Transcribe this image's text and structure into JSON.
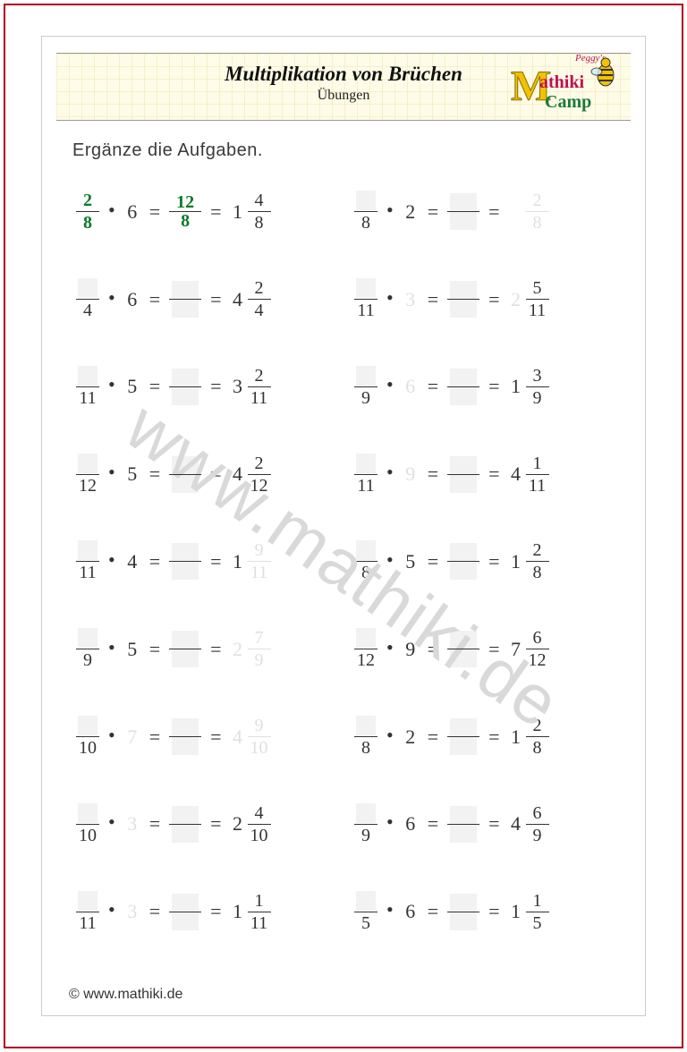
{
  "header": {
    "title": "Multiplikation von Brüchen",
    "subtitle": "Übungen",
    "logo_text_top": "Peggy's",
    "logo_text_m": "M",
    "logo_text_athiki": "athiki",
    "logo_text_camp": "Camp"
  },
  "instruction": "Ergänze die Aufgaben.",
  "watermark": "www.mathiki.de",
  "footer": "© www.mathiki.de",
  "colors": {
    "outer_border": "#b00020",
    "page_border": "#cccccc",
    "header_bg": "#fefce8",
    "header_grid": "#f4f0c8",
    "text": "#333333",
    "green": "#0a7a2a",
    "blank_bg": "#f2f2f2",
    "watermark": "#d9d9d9"
  },
  "font": {
    "title_family": "Times New Roman",
    "title_size": 23,
    "sub_size": 16,
    "body_size": 22,
    "instruction_size": 20
  },
  "problems": [
    {
      "row": 1,
      "col": 1,
      "f1_num": "2",
      "f1_den": "8",
      "f1_num_blank": false,
      "f1_num_green": true,
      "mult": "6",
      "mult_faded": false,
      "mid_num": "12",
      "mid_den": "8",
      "mid_num_blank": false,
      "mid_den_blank": false,
      "mid_green": true,
      "res_whole": "1",
      "res_num": "4",
      "res_den": "8",
      "res_whole_faded": false,
      "res_faded": false
    },
    {
      "row": 1,
      "col": 2,
      "f1_num": "",
      "f1_den": "8",
      "f1_num_blank": true,
      "f1_num_green": false,
      "mult": "2",
      "mult_faded": false,
      "mid_num": "",
      "mid_den": "",
      "mid_num_blank": true,
      "mid_den_blank": true,
      "mid_green": false,
      "res_whole": "",
      "res_num": "2",
      "res_den": "8",
      "res_whole_faded": true,
      "res_faded": true
    },
    {
      "row": 2,
      "col": 1,
      "f1_num": "",
      "f1_den": "4",
      "f1_num_blank": true,
      "f1_num_green": false,
      "mult": "6",
      "mult_faded": false,
      "mid_num": "",
      "mid_den": "",
      "mid_num_blank": true,
      "mid_den_blank": true,
      "mid_green": false,
      "res_whole": "4",
      "res_num": "2",
      "res_den": "4",
      "res_whole_faded": false,
      "res_faded": false
    },
    {
      "row": 2,
      "col": 2,
      "f1_num": "",
      "f1_den": "11",
      "f1_num_blank": true,
      "f1_num_green": false,
      "mult": "3",
      "mult_faded": true,
      "mid_num": "",
      "mid_den": "",
      "mid_num_blank": true,
      "mid_den_blank": true,
      "mid_green": false,
      "res_whole": "2",
      "res_num": "5",
      "res_den": "11",
      "res_whole_faded": true,
      "res_faded": false
    },
    {
      "row": 3,
      "col": 1,
      "f1_num": "",
      "f1_den": "11",
      "f1_num_blank": true,
      "f1_num_green": false,
      "mult": "5",
      "mult_faded": false,
      "mid_num": "",
      "mid_den": "",
      "mid_num_blank": true,
      "mid_den_blank": true,
      "mid_green": false,
      "res_whole": "3",
      "res_num": "2",
      "res_den": "11",
      "res_whole_faded": false,
      "res_faded": false
    },
    {
      "row": 3,
      "col": 2,
      "f1_num": "",
      "f1_den": "9",
      "f1_num_blank": true,
      "f1_num_green": false,
      "mult": "6",
      "mult_faded": true,
      "mid_num": "",
      "mid_den": "",
      "mid_num_blank": true,
      "mid_den_blank": true,
      "mid_green": false,
      "res_whole": "1",
      "res_num": "3",
      "res_den": "9",
      "res_whole_faded": false,
      "res_faded": false
    },
    {
      "row": 4,
      "col": 1,
      "f1_num": "",
      "f1_den": "12",
      "f1_num_blank": true,
      "f1_num_green": false,
      "mult": "5",
      "mult_faded": false,
      "mid_num": "",
      "mid_den": "",
      "mid_num_blank": true,
      "mid_den_blank": true,
      "mid_green": false,
      "res_whole": "4",
      "res_num": "2",
      "res_den": "12",
      "res_whole_faded": false,
      "res_faded": false
    },
    {
      "row": 4,
      "col": 2,
      "f1_num": "",
      "f1_den": "11",
      "f1_num_blank": true,
      "f1_num_green": false,
      "mult": "9",
      "mult_faded": true,
      "mid_num": "",
      "mid_den": "",
      "mid_num_blank": true,
      "mid_den_blank": true,
      "mid_green": false,
      "res_whole": "4",
      "res_num": "1",
      "res_den": "11",
      "res_whole_faded": false,
      "res_faded": false
    },
    {
      "row": 5,
      "col": 1,
      "f1_num": "",
      "f1_den": "11",
      "f1_num_blank": true,
      "f1_num_green": false,
      "mult": "4",
      "mult_faded": false,
      "mid_num": "",
      "mid_den": "",
      "mid_num_blank": true,
      "mid_den_blank": true,
      "mid_green": false,
      "res_whole": "1",
      "res_num": "9",
      "res_den": "11",
      "res_whole_faded": false,
      "res_faded": true
    },
    {
      "row": 5,
      "col": 2,
      "f1_num": "",
      "f1_den": "8",
      "f1_num_blank": true,
      "f1_num_green": false,
      "mult": "5",
      "mult_faded": false,
      "mid_num": "",
      "mid_den": "",
      "mid_num_blank": true,
      "mid_den_blank": true,
      "mid_green": false,
      "res_whole": "1",
      "res_num": "2",
      "res_den": "8",
      "res_whole_faded": false,
      "res_faded": false
    },
    {
      "row": 6,
      "col": 1,
      "f1_num": "",
      "f1_den": "9",
      "f1_num_blank": true,
      "f1_num_green": false,
      "mult": "5",
      "mult_faded": false,
      "mid_num": "",
      "mid_den": "",
      "mid_num_blank": true,
      "mid_den_blank": true,
      "mid_green": false,
      "res_whole": "2",
      "res_num": "7",
      "res_den": "9",
      "res_whole_faded": true,
      "res_faded": true
    },
    {
      "row": 6,
      "col": 2,
      "f1_num": "",
      "f1_den": "12",
      "f1_num_blank": true,
      "f1_num_green": false,
      "mult": "9",
      "mult_faded": false,
      "mid_num": "",
      "mid_den": "",
      "mid_num_blank": true,
      "mid_den_blank": true,
      "mid_green": false,
      "res_whole": "7",
      "res_num": "6",
      "res_den": "12",
      "res_whole_faded": false,
      "res_faded": false
    },
    {
      "row": 7,
      "col": 1,
      "f1_num": "",
      "f1_den": "10",
      "f1_num_blank": true,
      "f1_num_green": false,
      "mult": "7",
      "mult_faded": true,
      "mid_num": "",
      "mid_den": "",
      "mid_num_blank": true,
      "mid_den_blank": true,
      "mid_green": false,
      "res_whole": "4",
      "res_num": "9",
      "res_den": "10",
      "res_whole_faded": true,
      "res_faded": true
    },
    {
      "row": 7,
      "col": 2,
      "f1_num": "",
      "f1_den": "8",
      "f1_num_blank": true,
      "f1_num_green": false,
      "mult": "2",
      "mult_faded": false,
      "mid_num": "",
      "mid_den": "",
      "mid_num_blank": true,
      "mid_den_blank": true,
      "mid_green": false,
      "res_whole": "1",
      "res_num": "2",
      "res_den": "8",
      "res_whole_faded": false,
      "res_faded": false
    },
    {
      "row": 8,
      "col": 1,
      "f1_num": "",
      "f1_den": "10",
      "f1_num_blank": true,
      "f1_num_green": false,
      "mult": "3",
      "mult_faded": true,
      "mid_num": "",
      "mid_den": "",
      "mid_num_blank": true,
      "mid_den_blank": true,
      "mid_green": false,
      "res_whole": "2",
      "res_num": "4",
      "res_den": "10",
      "res_whole_faded": false,
      "res_faded": false
    },
    {
      "row": 8,
      "col": 2,
      "f1_num": "",
      "f1_den": "9",
      "f1_num_blank": true,
      "f1_num_green": false,
      "mult": "6",
      "mult_faded": false,
      "mid_num": "",
      "mid_den": "",
      "mid_num_blank": true,
      "mid_den_blank": true,
      "mid_green": false,
      "res_whole": "4",
      "res_num": "6",
      "res_den": "9",
      "res_whole_faded": false,
      "res_faded": false
    },
    {
      "row": 9,
      "col": 1,
      "f1_num": "",
      "f1_den": "11",
      "f1_num_blank": true,
      "f1_num_green": false,
      "mult": "3",
      "mult_faded": true,
      "mid_num": "",
      "mid_den": "",
      "mid_num_blank": true,
      "mid_den_blank": true,
      "mid_green": false,
      "res_whole": "1",
      "res_num": "1",
      "res_den": "11",
      "res_whole_faded": false,
      "res_faded": false
    },
    {
      "row": 9,
      "col": 2,
      "f1_num": "",
      "f1_den": "5",
      "f1_num_blank": true,
      "f1_num_green": false,
      "mult": "6",
      "mult_faded": false,
      "mid_num": "",
      "mid_den": "",
      "mid_num_blank": true,
      "mid_den_blank": true,
      "mid_green": false,
      "res_whole": "1",
      "res_num": "1",
      "res_den": "5",
      "res_whole_faded": false,
      "res_faded": false
    }
  ]
}
